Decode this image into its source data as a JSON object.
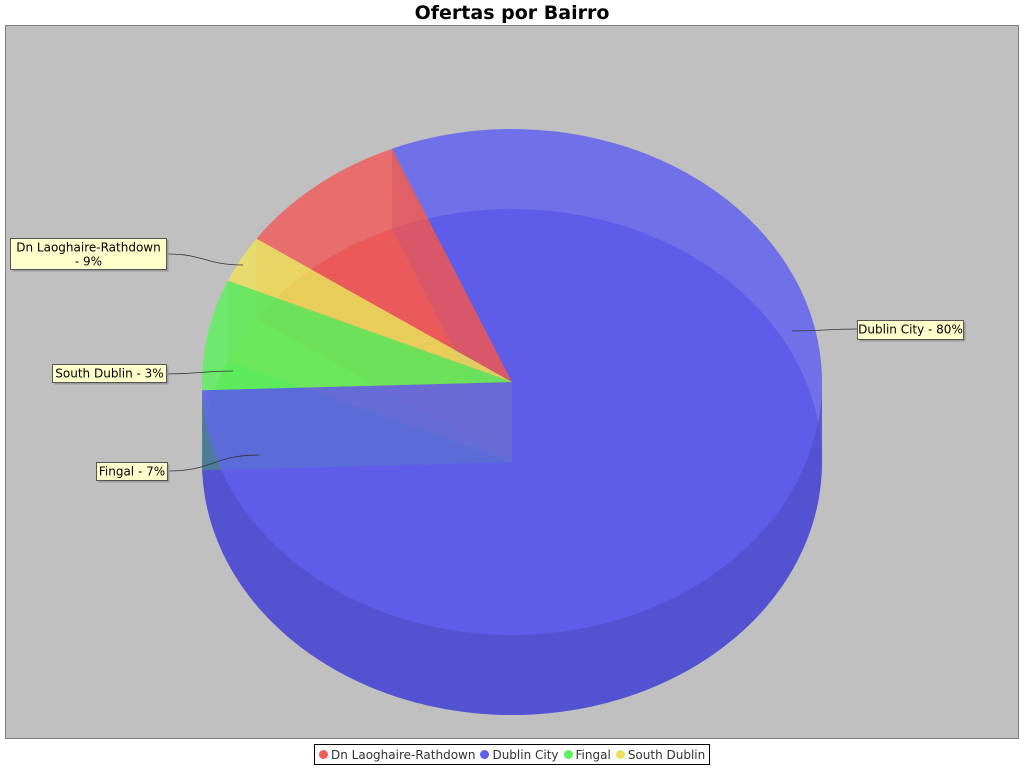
{
  "chart_data": {
    "type": "pie",
    "title": "Ofertas por Bairro",
    "slices": [
      {
        "label": "Dn Laoghaire-Rathdown",
        "value": 9,
        "color": "#f05a5a",
        "callout": "Dn Laoghaire-Rathdown - 9%"
      },
      {
        "label": "Dublin City",
        "value": 80,
        "color": "#5e5ef0",
        "callout": "Dublin City - 80%"
      },
      {
        "label": "Fingal",
        "value": 7,
        "color": "#5ef05e",
        "callout": "Fingal - 7%"
      },
      {
        "label": "South Dublin",
        "value": 3,
        "color": "#f0e05e",
        "callout": "South Dublin - 3%"
      }
    ],
    "legend_position": "bottom",
    "plot_background": "#c0c0c0",
    "label_background": "#ffffcc",
    "three_d": true
  }
}
